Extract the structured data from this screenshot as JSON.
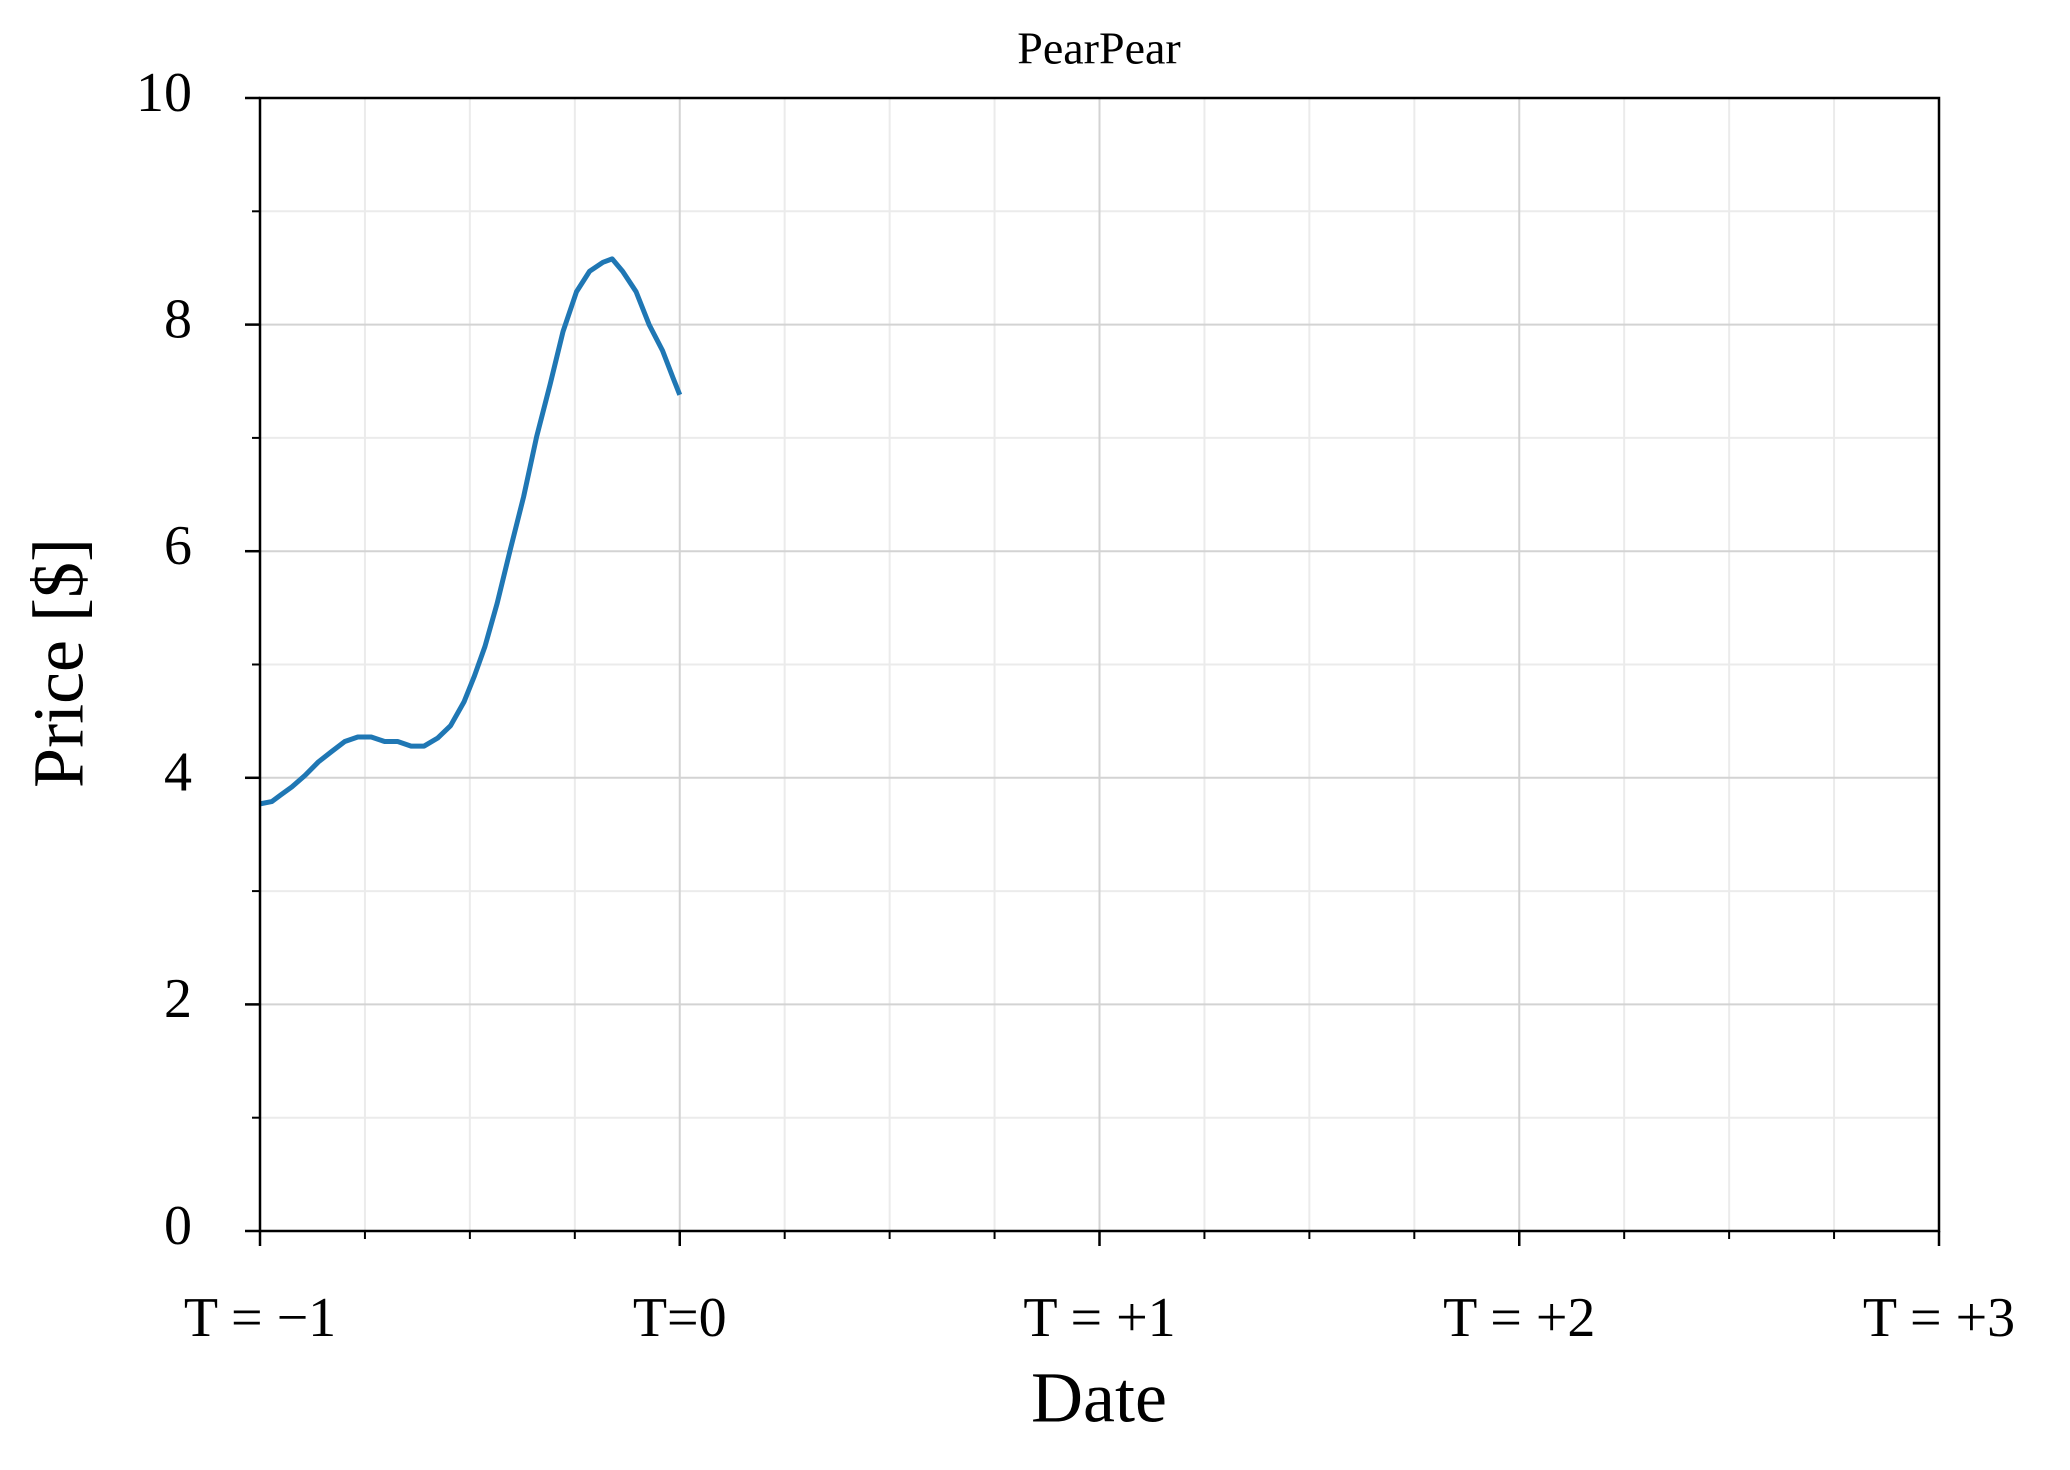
{
  "chart_data": {
    "type": "line",
    "title": "PearPear",
    "x_label": "Date",
    "y_label": "Price [$]",
    "x": [
      -1,
      -0.972,
      -0.95,
      -0.924,
      -0.893,
      -0.861,
      -0.83,
      -0.798,
      -0.767,
      -0.735,
      -0.703,
      -0.672,
      -0.64,
      -0.609,
      -0.577,
      -0.546,
      -0.514,
      -0.489,
      -0.464,
      -0.435,
      -0.404,
      -0.372,
      -0.341,
      -0.309,
      -0.278,
      -0.246,
      -0.215,
      -0.183,
      -0.161,
      -0.136,
      -0.104,
      -0.073,
      -0.041,
      -0.016,
      0
    ],
    "values": [
      3.77,
      3.79,
      3.85,
      3.92,
      4.02,
      4.14,
      4.23,
      4.32,
      4.36,
      4.36,
      4.32,
      4.32,
      4.28,
      4.28,
      4.35,
      4.46,
      4.67,
      4.9,
      5.16,
      5.54,
      6.01,
      6.48,
      7.01,
      7.47,
      7.94,
      8.29,
      8.47,
      8.55,
      8.58,
      8.47,
      8.29,
      8.0,
      7.77,
      7.53,
      7.38
    ],
    "color": "#1f77b4",
    "xlim": [
      -1,
      3
    ],
    "ylim": [
      0,
      10
    ],
    "xticks": [
      {
        "value": -1,
        "label": "T = −1"
      },
      {
        "value": 0,
        "label": "T=0"
      },
      {
        "value": 1,
        "label": "T = +1"
      },
      {
        "value": 2,
        "label": "T = +2"
      },
      {
        "value": 3,
        "label": "T = +3"
      }
    ],
    "xminorticks": [
      -0.75,
      -0.5,
      -0.25,
      0.25,
      0.5,
      0.75,
      1.25,
      1.5,
      1.75,
      2.25,
      2.5,
      2.75
    ],
    "yticks": [
      0,
      2,
      4,
      6,
      8,
      10
    ],
    "yminorticks": [
      1,
      3,
      5,
      7,
      9
    ],
    "grid": true
  }
}
